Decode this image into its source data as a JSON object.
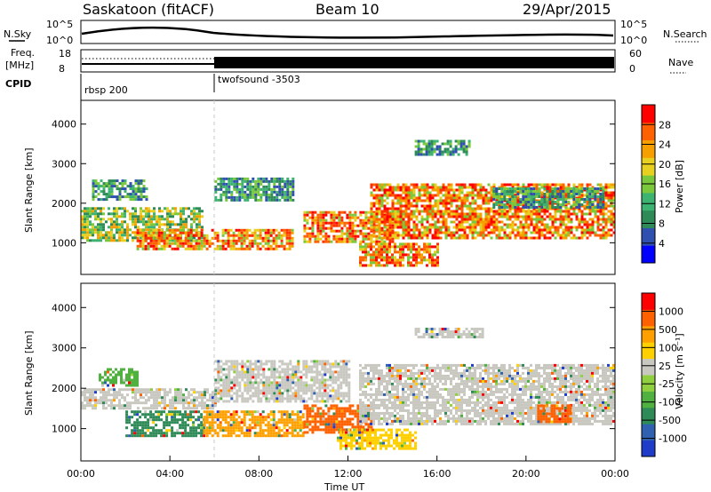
{
  "header": {
    "title": "Saskatoon (fitACF)",
    "beam": "Beam 10",
    "date": "29/Apr/2015"
  },
  "status_panels": {
    "nsky_label": "N.Sky",
    "nsearch_label": "N.Search",
    "noise_ticks": [
      "10^5",
      "10^0"
    ],
    "freq_label_1": "Freq.",
    "freq_label_2": "[MHz]",
    "freq_ticks": [
      "18",
      "8"
    ],
    "nave_label": "Nave",
    "nave_ticks": [
      "60",
      "0"
    ],
    "cpid_label": "CPID",
    "cpid_segments": [
      {
        "label": "rbsp 200",
        "start_hour": 0
      },
      {
        "label": "twofsound -3503",
        "start_hour": 6
      }
    ]
  },
  "chart_data": [
    {
      "type": "heatmap",
      "name": "power",
      "ylabel": "Slant Range [km]",
      "xlabel": "",
      "y_ticks": [
        1000,
        2000,
        3000,
        4000
      ],
      "ylim": [
        200,
        4600
      ],
      "xlim": [
        0,
        24
      ],
      "colorbar": {
        "label": "Power [dB]",
        "ticks": [
          "28",
          "24",
          "20",
          "16",
          "12",
          "8",
          "4"
        ],
        "colors": [
          "#0000ff",
          "#3050b0",
          "#2e8b57",
          "#3cb371",
          "#7cc83c",
          "#e8d020",
          "#f5a000",
          "#ff6000",
          "#ff0000"
        ]
      },
      "regions": [
        {
          "t0": 0.0,
          "t1": 5.5,
          "r0": 1050,
          "r1": 1900,
          "level": "mid"
        },
        {
          "t0": 2.5,
          "t1": 9.5,
          "r0": 850,
          "r1": 1350,
          "level": "high"
        },
        {
          "t0": 0.5,
          "t1": 3.0,
          "r0": 2100,
          "r1": 2600,
          "level": "low"
        },
        {
          "t0": 6.0,
          "t1": 9.5,
          "r0": 2100,
          "r1": 2650,
          "level": "low"
        },
        {
          "t0": 10.0,
          "t1": 14.0,
          "r0": 1000,
          "r1": 1800,
          "level": "high"
        },
        {
          "t0": 12.5,
          "t1": 16.0,
          "r0": 400,
          "r1": 1000,
          "level": "high"
        },
        {
          "t0": 13.0,
          "t1": 24.0,
          "r0": 1100,
          "r1": 2500,
          "level": "high"
        },
        {
          "t0": 15.0,
          "t1": 17.5,
          "r0": 3200,
          "r1": 3600,
          "level": "low"
        },
        {
          "t0": 18.5,
          "t1": 23.5,
          "r0": 1900,
          "r1": 2400,
          "level": "low"
        }
      ]
    },
    {
      "type": "heatmap",
      "name": "velocity",
      "ylabel": "Slant Range [km]",
      "xlabel": "Time UT",
      "x_ticks": [
        "00:00",
        "04:00",
        "08:00",
        "12:00",
        "16:00",
        "20:00",
        "00:00"
      ],
      "y_ticks": [
        1000,
        2000,
        3000,
        4000
      ],
      "ylim": [
        200,
        4600
      ],
      "xlim": [
        0,
        24
      ],
      "colorbar": {
        "label": "Velocity [m s⁻¹]",
        "ticks": [
          "1000",
          "500",
          "100",
          "25",
          "-25",
          "-100",
          "-500",
          "-1000"
        ],
        "colors": [
          "#1e3cc8",
          "#3060b0",
          "#2e8b57",
          "#50b040",
          "#90d040",
          "#c8c8c0",
          "#ffd000",
          "#ffa000",
          "#ff6000",
          "#ff0000"
        ]
      },
      "regions": [
        {
          "t0": 0.0,
          "t1": 6.0,
          "r0": 1500,
          "r1": 2000,
          "color": "#c8c8c0"
        },
        {
          "t0": 2.0,
          "t1": 5.5,
          "r0": 850,
          "r1": 1450,
          "color": "#2e8b57"
        },
        {
          "t0": 5.5,
          "t1": 10.0,
          "r0": 850,
          "r1": 1450,
          "color": "#ffa000"
        },
        {
          "t0": 10.0,
          "t1": 13.0,
          "r0": 900,
          "r1": 1600,
          "color": "#ff6000"
        },
        {
          "t0": 11.5,
          "t1": 15.0,
          "r0": 500,
          "r1": 1000,
          "color": "#ffd000"
        },
        {
          "t0": 12.5,
          "t1": 24.0,
          "r0": 1100,
          "r1": 2600,
          "color": "#c8c8c0"
        },
        {
          "t0": 6.0,
          "t1": 12.0,
          "r0": 1700,
          "r1": 2700,
          "color": "#c8c8c0"
        },
        {
          "t0": 0.8,
          "t1": 2.5,
          "r0": 2100,
          "r1": 2500,
          "color": "#50b040"
        },
        {
          "t0": 15.0,
          "t1": 18.0,
          "r0": 3300,
          "r1": 3500,
          "color": "#c8c8c0"
        },
        {
          "t0": 20.5,
          "t1": 22.0,
          "r0": 1200,
          "r1": 1600,
          "color": "#ff6000"
        }
      ]
    }
  ]
}
